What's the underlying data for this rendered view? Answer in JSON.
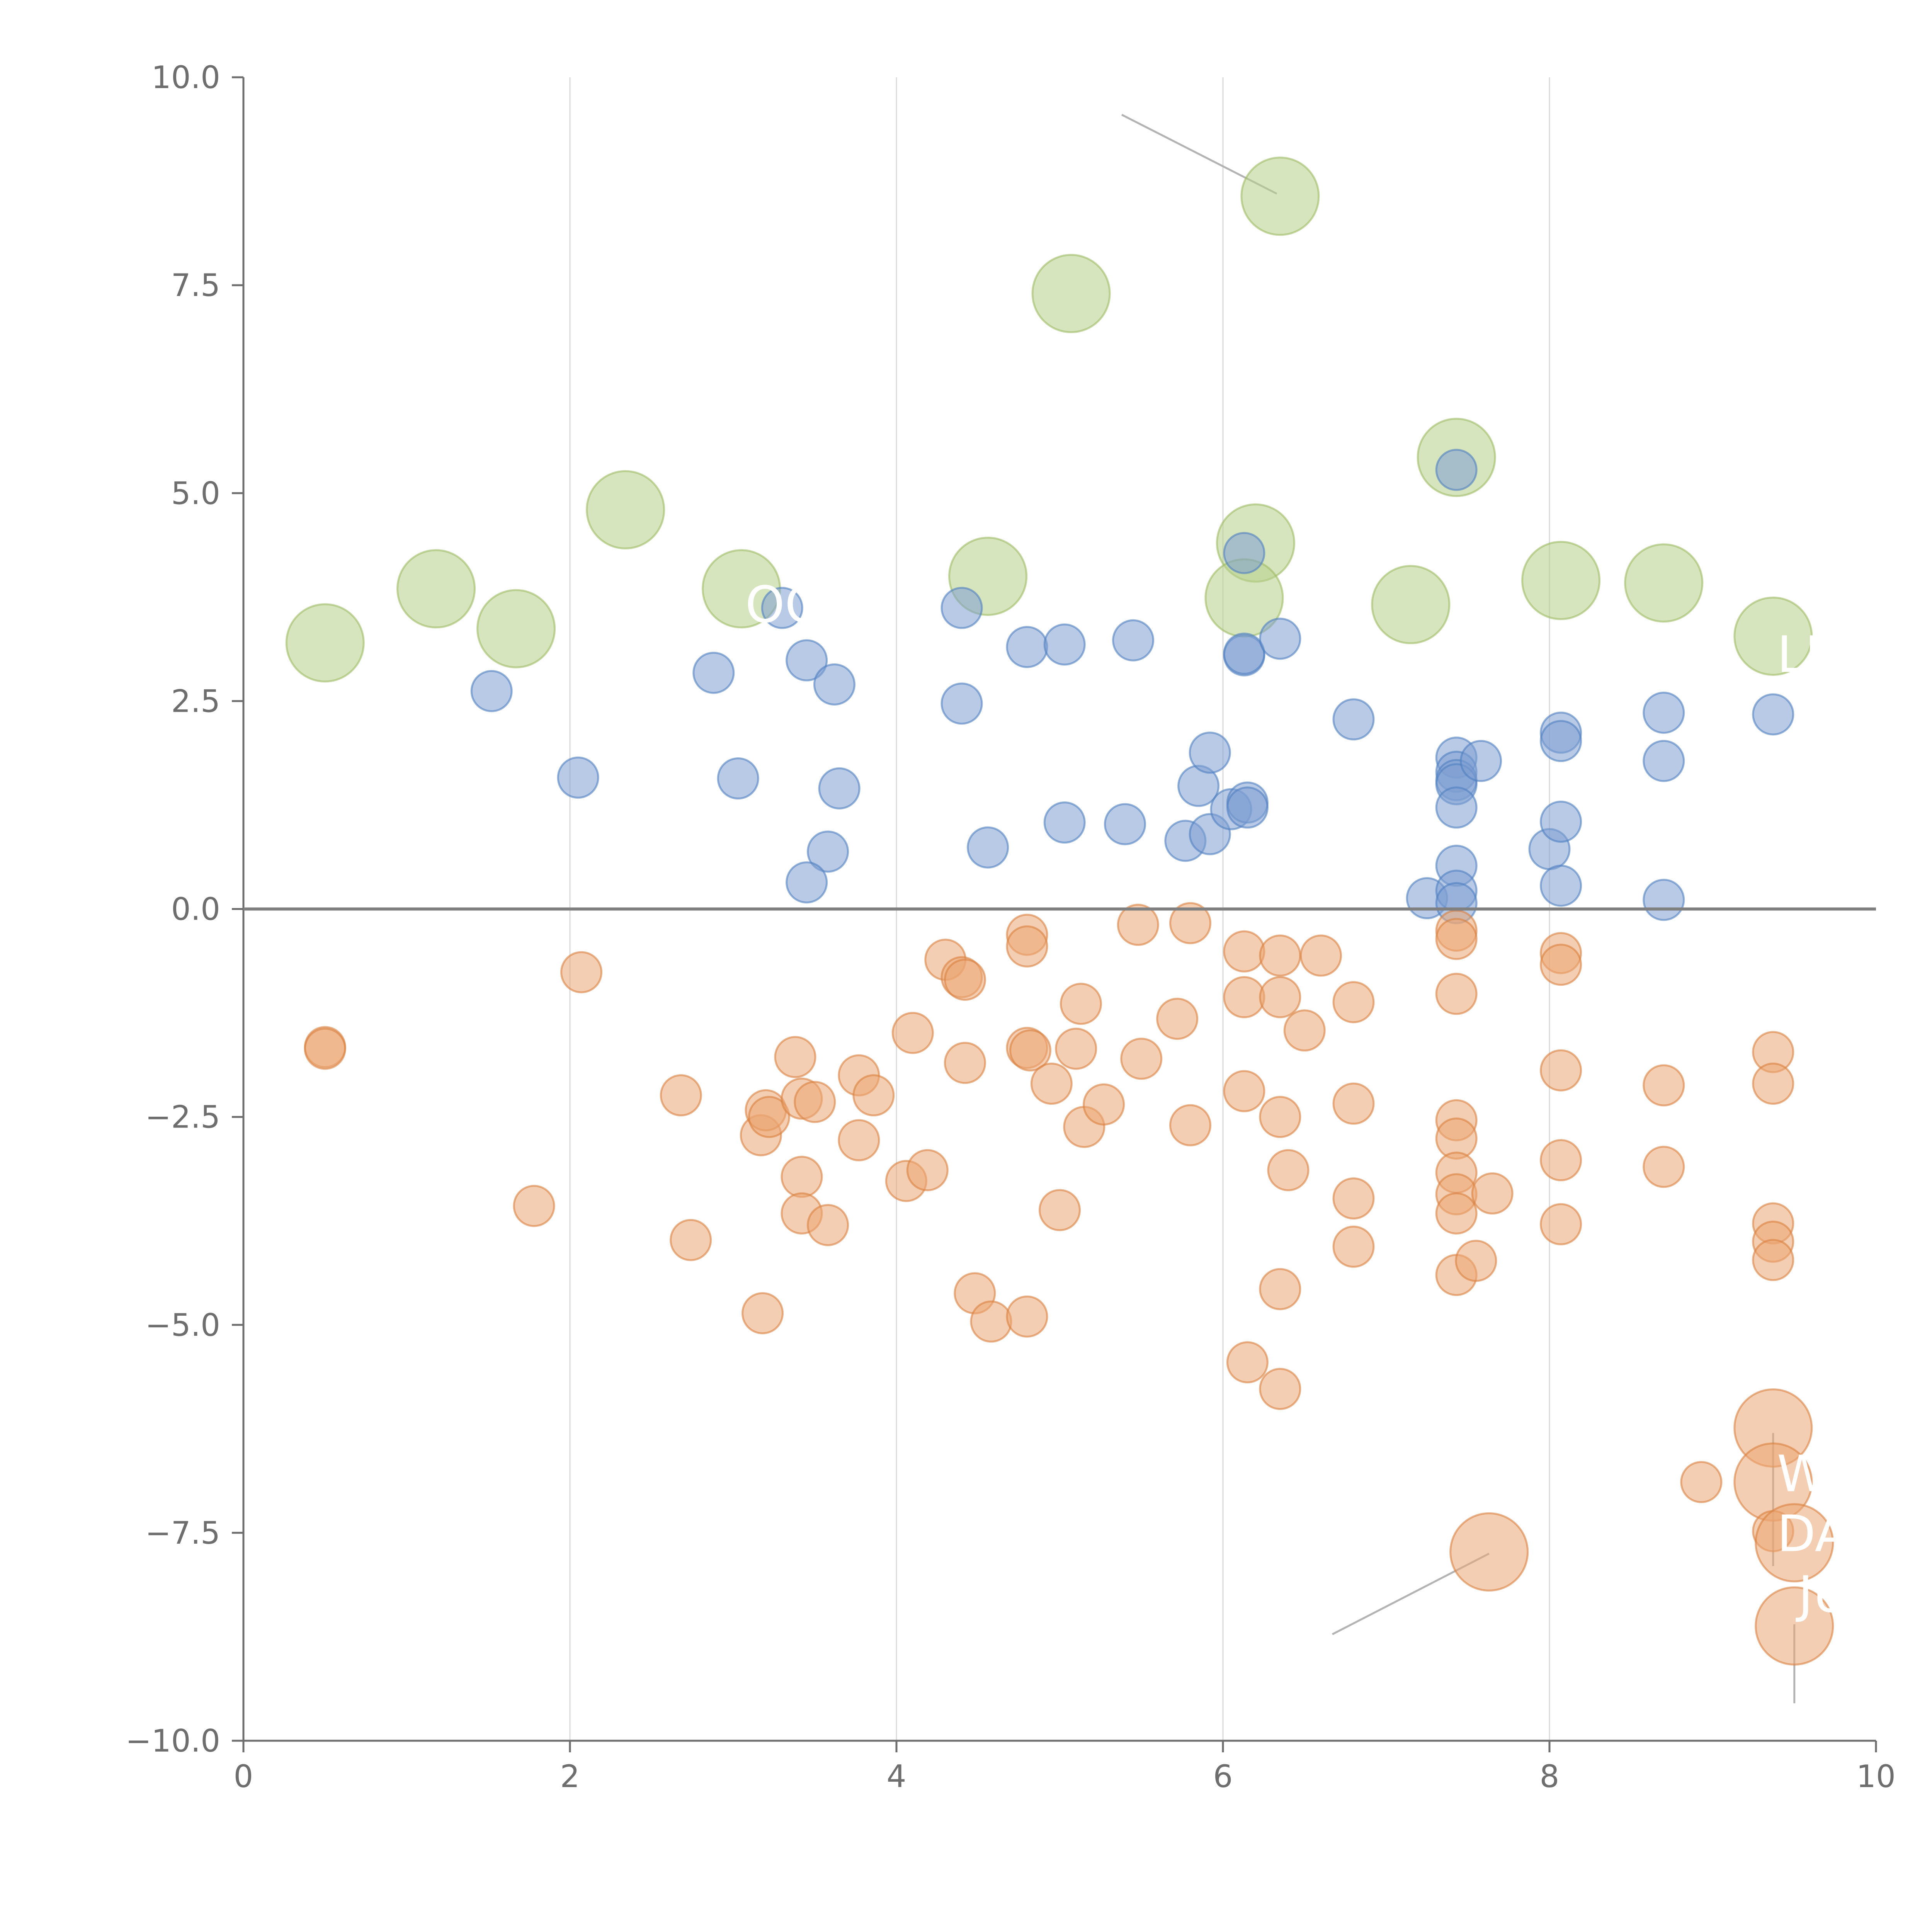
{
  "chart_data": {
    "type": "scatter",
    "title": "",
    "xlabel": "",
    "ylabel": "",
    "xlim": [
      0,
      10
    ],
    "ylim": [
      -10,
      10
    ],
    "grid": "vertical",
    "x_ticks": [
      0,
      2,
      4,
      6,
      8,
      10
    ],
    "x_tick_labels": [
      "0",
      "2",
      "4",
      "6",
      "8",
      "10"
    ],
    "y_ticks": [
      10,
      7.5,
      5,
      2.5,
      0,
      -2.5,
      -5,
      -7.5,
      -10
    ],
    "y_tick_labels": [
      "10.0",
      "7.5",
      "5.0",
      "2.5",
      "0.0",
      "−2.5",
      "−5.0",
      "−7.5",
      "−10.0"
    ],
    "zero_line": 0,
    "colors": {
      "green": "#b6cf8a",
      "green_edge": "#9cbb62",
      "blue": "#7e9fd1",
      "blue_edge": "#4f7fc0",
      "orange": "#eba572",
      "orange_edge": "#d8813f",
      "grid": "#d9d9d9",
      "axis": "#6e6e6e",
      "zero": "#808080",
      "leader": "#b3b3b3"
    },
    "series": [
      {
        "name": "green",
        "size": "large",
        "points": [
          [
            0.5,
            3.2
          ],
          [
            1.18,
            3.85
          ],
          [
            1.67,
            3.37
          ],
          [
            2.34,
            4.8
          ],
          [
            3.05,
            3.85
          ],
          [
            4.56,
            4.0
          ],
          [
            5.07,
            7.4
          ],
          [
            6.2,
            4.4
          ],
          [
            6.13,
            3.74
          ],
          [
            6.35,
            8.57
          ],
          [
            7.15,
            3.66
          ],
          [
            7.43,
            5.43
          ],
          [
            8.07,
            3.95
          ],
          [
            8.7,
            3.92
          ],
          [
            9.37,
            3.28
          ]
        ]
      },
      {
        "name": "blue",
        "size": "small",
        "points": [
          [
            1.52,
            2.62
          ],
          [
            2.05,
            1.58
          ],
          [
            2.88,
            2.84
          ],
          [
            3.03,
            1.57
          ],
          [
            3.3,
            3.62
          ],
          [
            3.45,
            2.99
          ],
          [
            3.62,
            2.7
          ],
          [
            3.65,
            1.45
          ],
          [
            3.58,
            0.69
          ],
          [
            3.45,
            0.32
          ],
          [
            4.4,
            3.62
          ],
          [
            4.4,
            2.47
          ],
          [
            4.56,
            0.74
          ],
          [
            4.8,
            3.15
          ],
          [
            5.03,
            3.18
          ],
          [
            5.03,
            1.04
          ],
          [
            5.4,
            1.02
          ],
          [
            5.45,
            3.23
          ],
          [
            5.77,
            0.82
          ],
          [
            5.85,
            1.48
          ],
          [
            5.92,
            1.88
          ],
          [
            5.92,
            0.9
          ],
          [
            6.05,
            1.2
          ],
          [
            6.13,
            3.05
          ],
          [
            6.13,
            3.07
          ],
          [
            6.15,
            1.28
          ],
          [
            6.15,
            1.22
          ],
          [
            6.13,
            4.28
          ],
          [
            6.35,
            3.25
          ],
          [
            6.8,
            2.28
          ],
          [
            7.25,
            0.13
          ],
          [
            7.43,
            1.82
          ],
          [
            7.43,
            1.65
          ],
          [
            7.43,
            1.55
          ],
          [
            7.43,
            1.5
          ],
          [
            7.43,
            1.22
          ],
          [
            7.43,
            0.52
          ],
          [
            7.43,
            0.22
          ],
          [
            7.43,
            0.07
          ],
          [
            7.43,
            5.28
          ],
          [
            7.58,
            1.78
          ],
          [
            8.0,
            0.72
          ],
          [
            8.07,
            2.12
          ],
          [
            8.07,
            2.02
          ],
          [
            8.07,
            1.05
          ],
          [
            8.07,
            0.28
          ],
          [
            8.7,
            2.36
          ],
          [
            8.7,
            1.78
          ],
          [
            8.7,
            0.11
          ],
          [
            9.37,
            2.34
          ]
        ]
      },
      {
        "name": "orange",
        "size": "small",
        "points": [
          [
            0.5,
            -1.66
          ],
          [
            0.5,
            -1.68
          ],
          [
            1.78,
            -3.57
          ],
          [
            2.07,
            -0.76
          ],
          [
            2.68,
            -2.24
          ],
          [
            2.74,
            -3.98
          ],
          [
            3.17,
            -2.72
          ],
          [
            3.18,
            -4.86
          ],
          [
            3.2,
            -2.42
          ],
          [
            3.22,
            -2.5
          ],
          [
            3.38,
            -1.78
          ],
          [
            3.42,
            -2.28
          ],
          [
            3.42,
            -3.22
          ],
          [
            3.42,
            -3.66
          ],
          [
            3.5,
            -2.32
          ],
          [
            3.58,
            -3.8
          ],
          [
            3.77,
            -2.0
          ],
          [
            3.77,
            -2.78
          ],
          [
            3.86,
            -2.24
          ],
          [
            4.06,
            -3.27
          ],
          [
            4.1,
            -1.49
          ],
          [
            4.19,
            -3.14
          ],
          [
            4.3,
            -0.61
          ],
          [
            4.4,
            -0.82
          ],
          [
            4.42,
            -0.85
          ],
          [
            4.42,
            -1.85
          ],
          [
            4.48,
            -4.62
          ],
          [
            4.58,
            -4.96
          ],
          [
            4.8,
            -0.31
          ],
          [
            4.8,
            -0.45
          ],
          [
            4.8,
            -1.67
          ],
          [
            4.82,
            -1.7
          ],
          [
            4.8,
            -4.9
          ],
          [
            4.95,
            -2.1
          ],
          [
            5.0,
            -3.62
          ],
          [
            5.1,
            -1.68
          ],
          [
            5.13,
            -1.14
          ],
          [
            5.15,
            -2.62
          ],
          [
            5.27,
            -2.35
          ],
          [
            5.48,
            -0.19
          ],
          [
            5.5,
            -1.8
          ],
          [
            5.72,
            -1.32
          ],
          [
            5.8,
            -0.17
          ],
          [
            5.8,
            -2.6
          ],
          [
            6.13,
            -0.51
          ],
          [
            6.13,
            -1.06
          ],
          [
            6.13,
            -2.19
          ],
          [
            6.15,
            -5.45
          ],
          [
            6.35,
            -0.56
          ],
          [
            6.35,
            -1.06
          ],
          [
            6.35,
            -2.5
          ],
          [
            6.35,
            -5.77
          ],
          [
            6.4,
            -3.14
          ],
          [
            6.35,
            -4.57
          ],
          [
            6.5,
            -1.46
          ],
          [
            6.6,
            -0.56
          ],
          [
            6.8,
            -1.12
          ],
          [
            6.8,
            -2.34
          ],
          [
            6.8,
            -3.48
          ],
          [
            6.8,
            -4.06
          ],
          [
            7.43,
            -0.26
          ],
          [
            7.43,
            -0.36
          ],
          [
            7.43,
            -1.02
          ],
          [
            7.43,
            -2.54
          ],
          [
            7.43,
            -2.76
          ],
          [
            7.43,
            -3.17
          ],
          [
            7.43,
            -3.43
          ],
          [
            7.43,
            -3.66
          ],
          [
            7.43,
            -4.4
          ],
          [
            7.55,
            -4.23
          ],
          [
            7.65,
            -3.42
          ],
          [
            7.63,
            -7.73
          ],
          [
            8.07,
            -0.53
          ],
          [
            8.07,
            -0.67
          ],
          [
            8.07,
            -1.94
          ],
          [
            8.07,
            -3.02
          ],
          [
            8.07,
            -3.79
          ],
          [
            8.7,
            -2.12
          ],
          [
            8.7,
            -3.1
          ],
          [
            8.93,
            -6.89
          ],
          [
            9.37,
            -1.72
          ],
          [
            9.37,
            -2.1
          ],
          [
            9.37,
            -3.78
          ],
          [
            9.37,
            -4.0
          ],
          [
            9.37,
            -4.22
          ],
          [
            9.37,
            -6.24
          ],
          [
            9.37,
            -6.89
          ],
          [
            9.37,
            -7.48
          ],
          [
            9.5,
            -7.62
          ],
          [
            9.5,
            -8.62
          ]
        ]
      }
    ],
    "large_points_orange": [
      [
        7.63,
        -7.73
      ],
      [
        9.37,
        -6.24
      ],
      [
        9.37,
        -6.89
      ],
      [
        9.5,
        -7.62
      ],
      [
        9.5,
        -8.62
      ]
    ],
    "annotations": [
      {
        "text": "W",
        "x": 9.37,
        "y": -7.0
      },
      {
        "text": "DA",
        "x": 9.37,
        "y": -7.72
      },
      {
        "text": "JU",
        "x": 9.5,
        "y": -8.45
      },
      {
        "text": "OO",
        "x": 3.05,
        "y": 3.45
      },
      {
        "text": "LL",
        "x": 9.37,
        "y": 2.85
      }
    ]
  }
}
